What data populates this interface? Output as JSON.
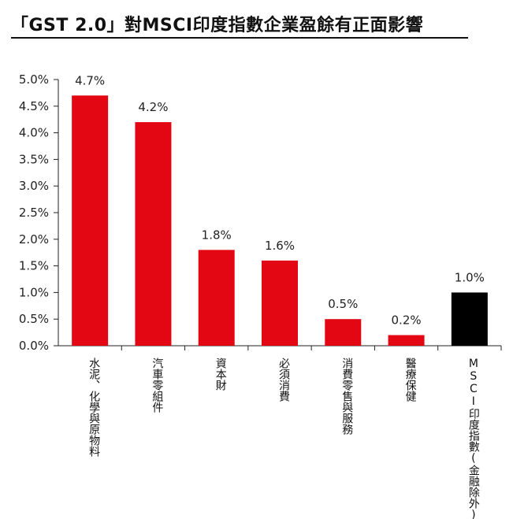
{
  "chart_data": {
    "type": "bar",
    "title": "「GST 2.0」對MSCI印度指數企業盈餘有正面影響",
    "categories": [
      "水泥、化學與原物料",
      "汽車零組件",
      "資本財",
      "必須消費",
      "消費零售與服務",
      "醫療保健",
      "MSCI印度指數(金融除外)"
    ],
    "values": [
      4.7,
      4.2,
      1.8,
      1.6,
      0.5,
      0.2,
      1.0
    ],
    "data_labels": [
      "4.7%",
      "4.2%",
      "1.8%",
      "1.6%",
      "0.5%",
      "0.2%",
      "1.0%"
    ],
    "y_ticks": [
      "0.0%",
      "0.5%",
      "1.0%",
      "1.5%",
      "2.0%",
      "2.5%",
      "3.0%",
      "3.5%",
      "4.0%",
      "4.5%",
      "5.0%"
    ],
    "ylim": [
      0,
      5
    ],
    "grid": false,
    "colors": [
      "#e30613",
      "#e30613",
      "#e30613",
      "#e30613",
      "#e30613",
      "#e30613",
      "#000000"
    ]
  }
}
